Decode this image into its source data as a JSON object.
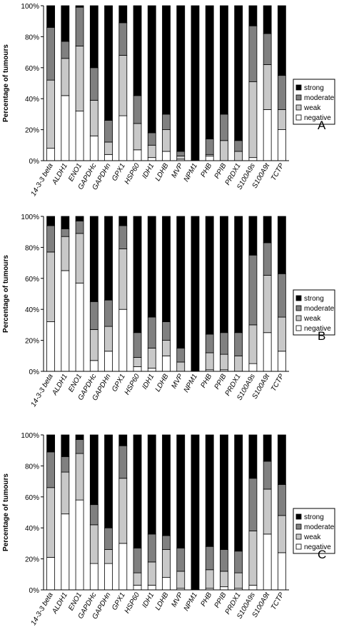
{
  "chart_data": [
    {
      "type": "bar",
      "stacked": true,
      "panel_label": "A",
      "ylabel": "Percentage of tumours",
      "ylim": [
        0,
        100
      ],
      "yticks": [
        "0%",
        "20%",
        "40%",
        "60%",
        "80%",
        "100%"
      ],
      "categories": [
        "14-3-3 beta",
        "ALDH1",
        "ENO1",
        "GAPDHc",
        "GAPDHn",
        "GPX1",
        "HSP60",
        "IDH1",
        "LDHB",
        "MVP",
        "NPM1",
        "PHB",
        "PPIB",
        "PRDX1",
        "S100A9s",
        "S100A9t",
        "TCTP"
      ],
      "legend": [
        "strong",
        "moderate",
        "weak",
        "negative"
      ],
      "legend_position": "right",
      "series": [
        {
          "name": "negative",
          "color": "#ffffff",
          "values": [
            8,
            42,
            32,
            16,
            4,
            29,
            7,
            2,
            6,
            1,
            0,
            3,
            0,
            0,
            2,
            33,
            20
          ]
        },
        {
          "name": "weak",
          "color": "#c8c8c8",
          "values": [
            44,
            24,
            42,
            23,
            8,
            39,
            17,
            8,
            14,
            2,
            0,
            1,
            13,
            6,
            49,
            29,
            13
          ]
        },
        {
          "name": "moderate",
          "color": "#808080",
          "values": [
            34,
            11,
            25,
            21,
            14,
            21,
            18,
            8,
            10,
            3,
            0,
            10,
            17,
            7,
            36,
            20,
            22
          ]
        },
        {
          "name": "strong",
          "color": "#000000",
          "values": [
            14,
            23,
            1,
            40,
            74,
            11,
            58,
            82,
            70,
            94,
            100,
            86,
            70,
            87,
            13,
            18,
            45
          ]
        }
      ]
    },
    {
      "type": "bar",
      "stacked": true,
      "panel_label": "B",
      "ylabel": "Percentage of tumours",
      "ylim": [
        0,
        100
      ],
      "yticks": [
        "0%",
        "20%",
        "40%",
        "60%",
        "80%",
        "100%"
      ],
      "categories": [
        "14-3-3 beta",
        "ALDH1",
        "ENO1",
        "GAPDHc",
        "GAPDHn",
        "GPX1",
        "HSP60",
        "IDH1",
        "LDHB",
        "MVP",
        "NPM1",
        "PHB",
        "PPIB",
        "PRDX1",
        "S100A9s",
        "S100A9t",
        "TCTP"
      ],
      "legend": [
        "strong",
        "moderate",
        "weak",
        "negative"
      ],
      "legend_position": "right",
      "series": [
        {
          "name": "negative",
          "color": "#ffffff",
          "values": [
            32,
            65,
            57,
            7,
            13,
            40,
            3,
            2,
            10,
            0,
            0,
            1,
            1,
            0,
            5,
            25,
            13
          ]
        },
        {
          "name": "weak",
          "color": "#c8c8c8",
          "values": [
            45,
            22,
            32,
            20,
            16,
            39,
            6,
            13,
            10,
            6,
            0,
            11,
            10,
            10,
            25,
            37,
            22
          ]
        },
        {
          "name": "moderate",
          "color": "#808080",
          "values": [
            17,
            5,
            8,
            18,
            17,
            15,
            16,
            20,
            12,
            9,
            0,
            12,
            14,
            15,
            45,
            21,
            28
          ]
        },
        {
          "name": "strong",
          "color": "#000000",
          "values": [
            6,
            8,
            3,
            55,
            54,
            6,
            75,
            65,
            68,
            85,
            100,
            76,
            75,
            75,
            25,
            17,
            37
          ]
        }
      ]
    },
    {
      "type": "bar",
      "stacked": true,
      "panel_label": "C",
      "ylabel": "Percentage of tumours",
      "ylim": [
        0,
        100
      ],
      "yticks": [
        "0%",
        "20%",
        "40%",
        "60%",
        "80%",
        "100%"
      ],
      "categories": [
        "14-3-3 beta",
        "ALDH1",
        "ENO1",
        "GAPDHc",
        "GAPDHn",
        "GPX1",
        "HSP60",
        "IDH1",
        "LDHB",
        "MVP",
        "NPM1",
        "PHB",
        "PPIB",
        "PRDX1",
        "S100A9s",
        "S100A9t",
        "TCTP"
      ],
      "legend": [
        "strong",
        "moderate",
        "weak",
        "negative"
      ],
      "legend_position": "right",
      "series": [
        {
          "name": "negative",
          "color": "#ffffff",
          "values": [
            21,
            49,
            58,
            17,
            17,
            30,
            3,
            3,
            8,
            1,
            0,
            1,
            2,
            1,
            3,
            36,
            24
          ]
        },
        {
          "name": "weak",
          "color": "#c8c8c8",
          "values": [
            45,
            27,
            30,
            25,
            9,
            42,
            8,
            15,
            18,
            11,
            0,
            12,
            10,
            10,
            35,
            29,
            24
          ]
        },
        {
          "name": "moderate",
          "color": "#808080",
          "values": [
            23,
            10,
            9,
            13,
            14,
            21,
            16,
            18,
            9,
            15,
            0,
            15,
            14,
            14,
            34,
            18,
            20
          ]
        },
        {
          "name": "strong",
          "color": "#000000",
          "values": [
            11,
            14,
            3,
            45,
            60,
            7,
            73,
            64,
            65,
            73,
            100,
            72,
            74,
            75,
            28,
            17,
            32
          ]
        }
      ]
    }
  ]
}
